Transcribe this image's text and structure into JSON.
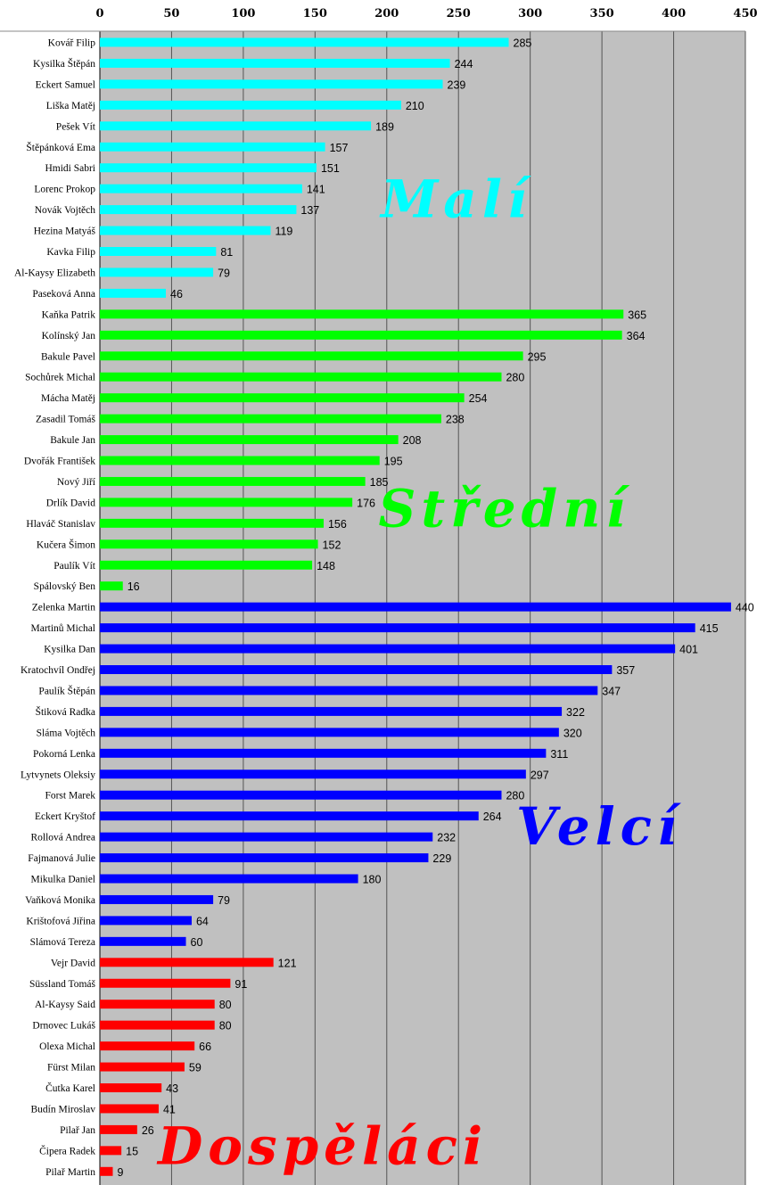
{
  "chart_data": {
    "type": "bar",
    "orientation": "horizontal",
    "xlim": [
      0,
      450
    ],
    "xticks": [
      0,
      50,
      100,
      150,
      200,
      250,
      300,
      350,
      400,
      450
    ],
    "grid": "vertical",
    "groups": [
      {
        "name": "Malí",
        "color": "#00FFFF",
        "categories": [
          "Kovář Filip",
          "Kysilka Štěpán",
          "Eckert Samuel",
          "Liška Matěj",
          "Pešek Vít",
          "Štěpánková Ema",
          "Hmidi Sabri",
          "Lorenc Prokop",
          "Novák Vojtěch",
          "Hezina Matyáš",
          "Kavka Filip",
          "Al-Kaysy Elizabeth",
          "Paseková Anna"
        ],
        "values": [
          285,
          244,
          239,
          210,
          189,
          157,
          151,
          141,
          137,
          119,
          81,
          79,
          46
        ]
      },
      {
        "name": "Střední",
        "color": "#00FF00",
        "categories": [
          "Kaňka Patrik",
          "Kolínský Jan",
          "Bakule Pavel",
          "Sochůrek Michal",
          "Mácha Matěj",
          "Zasadil Tomáš",
          "Bakule Jan",
          "Dvořák František",
          "Nový Jiří",
          "Drlík David",
          "Hlaváč Stanislav",
          "Kučera Šimon",
          "Paulík Vít",
          "Spálovský Ben"
        ],
        "values": [
          365,
          364,
          295,
          280,
          254,
          238,
          208,
          195,
          185,
          176,
          156,
          152,
          148,
          16
        ]
      },
      {
        "name": "Velcí",
        "color": "#0000FF",
        "categories": [
          "Zelenka Martin",
          "Martinů Michal",
          "Kysilka Dan",
          "Kratochvíl Ondřej",
          "Paulík Štěpán",
          "Štiková Radka",
          "Sláma Vojtěch",
          "Pokorná Lenka",
          "Lytvynets Oleksiy",
          "Forst Marek",
          "Eckert Kryštof",
          "Rollová Andrea",
          "Fajmanová Julie",
          "Mikulka Daniel",
          "Vaňková Monika",
          "Krištofová Jiřina",
          "Slámová Tereza"
        ],
        "values": [
          440,
          415,
          401,
          357,
          347,
          322,
          320,
          311,
          297,
          280,
          264,
          232,
          229,
          180,
          79,
          64,
          60
        ]
      },
      {
        "name": "Dospěláci",
        "color": "#FF0000",
        "categories": [
          "Vejr David",
          "Süssland Tomáš",
          "Al-Kaysy Said",
          "Drnovec Lukáš",
          "Olexa Michal",
          "Fürst Milan",
          "Čutka Karel",
          "Budín Miroslav",
          "Pilař Jan",
          "Čipera Radek",
          "Pilař Martin"
        ],
        "values": [
          121,
          91,
          80,
          80,
          66,
          59,
          43,
          41,
          26,
          15,
          9
        ]
      }
    ]
  }
}
